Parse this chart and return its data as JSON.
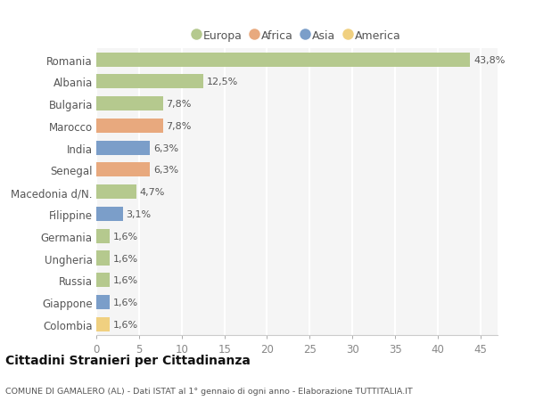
{
  "countries": [
    "Romania",
    "Albania",
    "Bulgaria",
    "Marocco",
    "India",
    "Senegal",
    "Macedonia d/N.",
    "Filippine",
    "Germania",
    "Ungheria",
    "Russia",
    "Giappone",
    "Colombia"
  ],
  "values": [
    43.8,
    12.5,
    7.8,
    7.8,
    6.3,
    6.3,
    4.7,
    3.1,
    1.6,
    1.6,
    1.6,
    1.6,
    1.6
  ],
  "labels": [
    "43,8%",
    "12,5%",
    "7,8%",
    "7,8%",
    "6,3%",
    "6,3%",
    "4,7%",
    "3,1%",
    "1,6%",
    "1,6%",
    "1,6%",
    "1,6%",
    "1,6%"
  ],
  "continents": [
    "Europa",
    "Europa",
    "Europa",
    "Africa",
    "Asia",
    "Africa",
    "Europa",
    "Asia",
    "Europa",
    "Europa",
    "Europa",
    "Asia",
    "America"
  ],
  "continent_colors": {
    "Europa": "#b5c98e",
    "Africa": "#e8a97e",
    "Asia": "#7b9ec9",
    "America": "#f0d080"
  },
  "legend_order": [
    "Europa",
    "Africa",
    "Asia",
    "America"
  ],
  "title": "Cittadini Stranieri per Cittadinanza",
  "subtitle": "COMUNE DI GAMALERO (AL) - Dati ISTAT al 1° gennaio di ogni anno - Elaborazione TUTTITALIA.IT",
  "xlim": [
    0,
    47
  ],
  "xticks": [
    0,
    5,
    10,
    15,
    20,
    25,
    30,
    35,
    40,
    45
  ],
  "background_color": "#ffffff",
  "plot_bg_color": "#f5f5f5",
  "grid_color": "#ffffff",
  "bar_height": 0.65
}
